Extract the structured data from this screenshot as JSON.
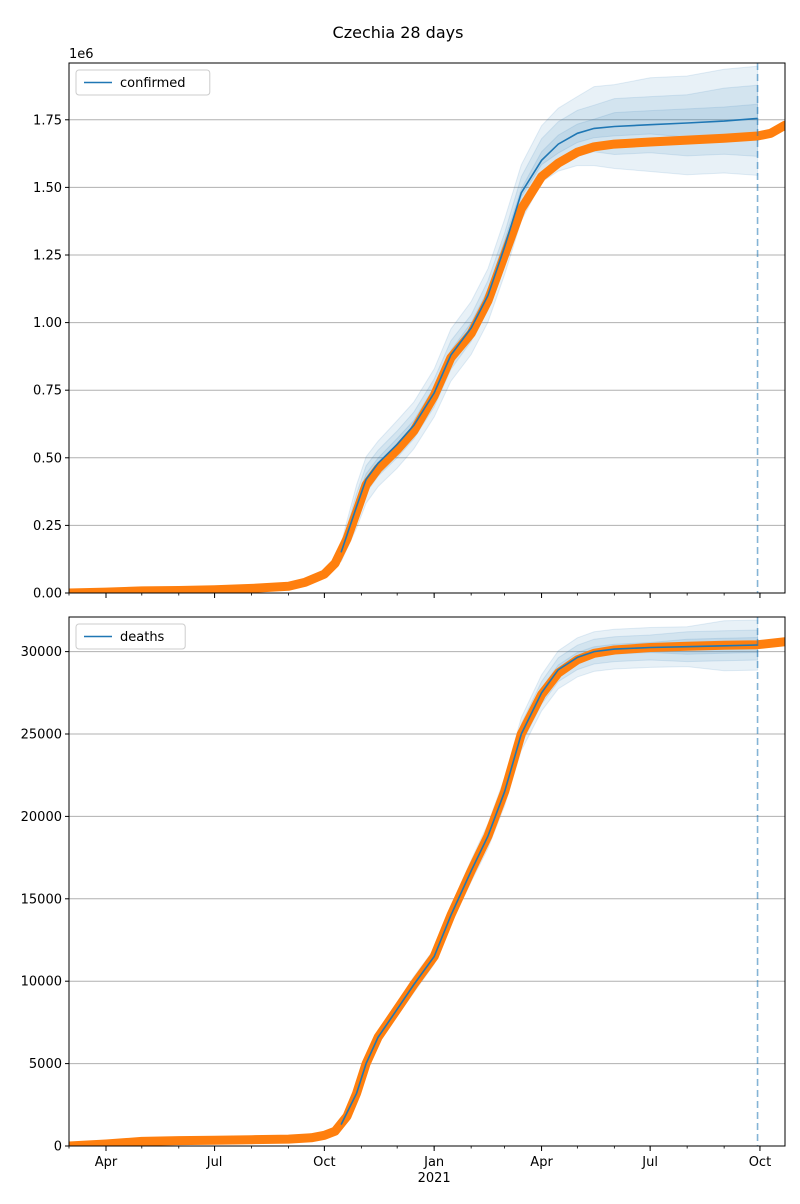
{
  "chart_data": {
    "type": "line",
    "title": "Czechia 28 days",
    "colors": {
      "model": "#1f77b4",
      "observed": "#ff7f0e",
      "grid": "#b0b0b0"
    },
    "x_axis": {
      "tick_labels": [
        "Apr",
        "Jul",
        "Oct",
        "Jan",
        "Apr",
        "Jul",
        "Oct"
      ],
      "tick_dates": [
        "2020-04-01",
        "2020-07-01",
        "2020-10-01",
        "2021-01-01",
        "2021-04-01",
        "2021-07-01",
        "2021-10-01"
      ],
      "year_label": "2021",
      "range": [
        "2020-03-01",
        "2021-10-22"
      ],
      "forecast_start": "2021-09-29"
    },
    "panels": [
      {
        "legend": "confirmed",
        "legend_position": "upper left",
        "offset_label": "1e6",
        "ylim": [
          0,
          1960000
        ],
        "y_ticks": [
          0,
          250000,
          500000,
          750000,
          1000000,
          1250000,
          1500000,
          1750000
        ],
        "y_tick_labels": [
          "0.00",
          "0.25",
          "0.50",
          "0.75",
          "1.00",
          "1.25",
          "1.50",
          "1.75"
        ],
        "grid": true,
        "observed": [
          [
            "2020-03-01",
            0
          ],
          [
            "2020-04-01",
            3300
          ],
          [
            "2020-05-01",
            7700
          ],
          [
            "2020-06-01",
            9300
          ],
          [
            "2020-07-01",
            12000
          ],
          [
            "2020-08-01",
            17000
          ],
          [
            "2020-09-01",
            25000
          ],
          [
            "2020-09-15",
            40000
          ],
          [
            "2020-10-01",
            70000
          ],
          [
            "2020-10-10",
            110000
          ],
          [
            "2020-10-20",
            200000
          ],
          [
            "2020-10-28",
            300000
          ],
          [
            "2020-11-05",
            400000
          ],
          [
            "2020-11-15",
            460000
          ],
          [
            "2020-12-01",
            530000
          ],
          [
            "2020-12-15",
            600000
          ],
          [
            "2021-01-01",
            730000
          ],
          [
            "2021-01-15",
            870000
          ],
          [
            "2021-02-01",
            960000
          ],
          [
            "2021-02-15",
            1080000
          ],
          [
            "2021-03-01",
            1250000
          ],
          [
            "2021-03-15",
            1420000
          ],
          [
            "2021-04-01",
            1540000
          ],
          [
            "2021-04-15",
            1590000
          ],
          [
            "2021-05-01",
            1630000
          ],
          [
            "2021-05-15",
            1650000
          ],
          [
            "2021-06-01",
            1660000
          ],
          [
            "2021-07-01",
            1668000
          ],
          [
            "2021-08-01",
            1675000
          ],
          [
            "2021-09-01",
            1682000
          ],
          [
            "2021-09-29",
            1690000
          ],
          [
            "2021-10-10",
            1700000
          ],
          [
            "2021-10-22",
            1730000
          ]
        ],
        "model": [
          [
            "2020-10-15",
            150000
          ],
          [
            "2020-10-28",
            320000
          ],
          [
            "2020-11-05",
            420000
          ],
          [
            "2020-11-15",
            480000
          ],
          [
            "2020-12-01",
            550000
          ],
          [
            "2020-12-15",
            620000
          ],
          [
            "2021-01-01",
            740000
          ],
          [
            "2021-01-15",
            880000
          ],
          [
            "2021-02-01",
            980000
          ],
          [
            "2021-02-15",
            1100000
          ],
          [
            "2021-03-01",
            1280000
          ],
          [
            "2021-03-15",
            1480000
          ],
          [
            "2021-04-01",
            1600000
          ],
          [
            "2021-04-15",
            1660000
          ],
          [
            "2021-05-01",
            1700000
          ],
          [
            "2021-05-15",
            1718000
          ],
          [
            "2021-06-01",
            1725000
          ],
          [
            "2021-07-01",
            1732000
          ],
          [
            "2021-08-01",
            1738000
          ],
          [
            "2021-09-01",
            1745000
          ],
          [
            "2021-09-29",
            1755000
          ]
        ],
        "bands": [
          {
            "lower": [
              0.77,
              0.75,
              0.79,
              0.82,
              0.84,
              0.86,
              0.88,
              0.89,
              0.9,
              0.91,
              0.92,
              0.93,
              0.95,
              0.94,
              0.93,
              0.92,
              0.91,
              0.9,
              0.89,
              0.89,
              0.88
            ],
            "upper": [
              1.23,
              1.25,
              1.2,
              1.17,
              1.16,
              1.14,
              1.12,
              1.11,
              1.1,
              1.09,
              1.08,
              1.07,
              1.08,
              1.08,
              1.08,
              1.09,
              1.09,
              1.1,
              1.1,
              1.11,
              1.11
            ]
          },
          {
            "lower": [
              0.86,
              0.85,
              0.88,
              0.9,
              0.91,
              0.92,
              0.93,
              0.94,
              0.95,
              0.95,
              0.96,
              0.96,
              0.97,
              0.96,
              0.95,
              0.95,
              0.94,
              0.94,
              0.93,
              0.93,
              0.92
            ],
            "upper": [
              1.14,
              1.15,
              1.12,
              1.1,
              1.09,
              1.08,
              1.07,
              1.06,
              1.05,
              1.05,
              1.04,
              1.04,
              1.05,
              1.05,
              1.05,
              1.05,
              1.06,
              1.06,
              1.06,
              1.07,
              1.07
            ]
          },
          {
            "lower": [
              0.94,
              0.93,
              0.95,
              0.96,
              0.96,
              0.97,
              0.97,
              0.98,
              0.98,
              0.98,
              0.98,
              0.99,
              0.99,
              0.98,
              0.98,
              0.98,
              0.98,
              0.98,
              0.97,
              0.97,
              0.97
            ],
            "upper": [
              1.06,
              1.07,
              1.05,
              1.04,
              1.04,
              1.03,
              1.03,
              1.02,
              1.02,
              1.02,
              1.02,
              1.01,
              1.02,
              1.02,
              1.02,
              1.02,
              1.03,
              1.03,
              1.03,
              1.03,
              1.03
            ]
          }
        ]
      },
      {
        "legend": "deaths",
        "legend_position": "upper left",
        "offset_label": "",
        "ylim": [
          0,
          32100
        ],
        "y_ticks": [
          0,
          5000,
          10000,
          15000,
          20000,
          25000,
          30000
        ],
        "y_tick_labels": [
          "0",
          "5000",
          "10000",
          "15000",
          "20000",
          "25000",
          "30000"
        ],
        "grid": true,
        "observed": [
          [
            "2020-03-01",
            0
          ],
          [
            "2020-04-01",
            120
          ],
          [
            "2020-05-01",
            280
          ],
          [
            "2020-06-01",
            330
          ],
          [
            "2020-07-01",
            350
          ],
          [
            "2020-08-01",
            380
          ],
          [
            "2020-09-01",
            420
          ],
          [
            "2020-09-20",
            500
          ],
          [
            "2020-10-01",
            650
          ],
          [
            "2020-10-10",
            900
          ],
          [
            "2020-10-20",
            1800
          ],
          [
            "2020-10-28",
            3200
          ],
          [
            "2020-11-05",
            5000
          ],
          [
            "2020-11-15",
            6600
          ],
          [
            "2020-12-01",
            8300
          ],
          [
            "2020-12-15",
            9800
          ],
          [
            "2021-01-01",
            11500
          ],
          [
            "2021-01-15",
            14000
          ],
          [
            "2021-02-01",
            16700
          ],
          [
            "2021-02-15",
            18800
          ],
          [
            "2021-03-01",
            21500
          ],
          [
            "2021-03-15",
            25000
          ],
          [
            "2021-04-01",
            27400
          ],
          [
            "2021-04-15",
            28700
          ],
          [
            "2021-05-01",
            29500
          ],
          [
            "2021-05-15",
            29900
          ],
          [
            "2021-06-01",
            30100
          ],
          [
            "2021-07-01",
            30250
          ],
          [
            "2021-08-01",
            30330
          ],
          [
            "2021-09-01",
            30380
          ],
          [
            "2021-09-29",
            30420
          ],
          [
            "2021-10-22",
            30600
          ]
        ],
        "model": [
          [
            "2020-10-15",
            1300
          ],
          [
            "2020-10-28",
            3200
          ],
          [
            "2020-11-05",
            5000
          ],
          [
            "2020-11-15",
            6600
          ],
          [
            "2020-12-01",
            8300
          ],
          [
            "2020-12-15",
            9800
          ],
          [
            "2021-01-01",
            11500
          ],
          [
            "2021-01-15",
            14000
          ],
          [
            "2021-02-01",
            16700
          ],
          [
            "2021-02-15",
            18800
          ],
          [
            "2021-03-01",
            21500
          ],
          [
            "2021-03-15",
            25000
          ],
          [
            "2021-04-01",
            27500
          ],
          [
            "2021-04-15",
            28900
          ],
          [
            "2021-05-01",
            29650
          ],
          [
            "2021-05-15",
            30000
          ],
          [
            "2021-06-01",
            30150
          ],
          [
            "2021-07-01",
            30250
          ],
          [
            "2021-08-01",
            30300
          ],
          [
            "2021-09-01",
            30350
          ],
          [
            "2021-09-29",
            30400
          ]
        ],
        "bands": [
          {
            "lower": [
              0.92,
              0.93,
              0.94,
              0.95,
              0.95,
              0.95,
              0.96,
              0.96,
              0.96,
              0.96,
              0.96,
              0.96,
              0.96,
              0.96,
              0.96,
              0.96,
              0.96,
              0.96,
              0.96,
              0.95,
              0.95
            ],
            "upper": [
              1.08,
              1.07,
              1.06,
              1.05,
              1.05,
              1.05,
              1.04,
              1.04,
              1.04,
              1.04,
              1.04,
              1.04,
              1.04,
              1.04,
              1.04,
              1.04,
              1.04,
              1.04,
              1.04,
              1.05,
              1.05
            ]
          },
          {
            "lower": [
              0.95,
              0.96,
              0.96,
              0.97,
              0.97,
              0.97,
              0.975,
              0.975,
              0.975,
              0.975,
              0.975,
              0.975,
              0.975,
              0.975,
              0.975,
              0.975,
              0.975,
              0.975,
              0.97,
              0.97,
              0.97
            ],
            "upper": [
              1.05,
              1.04,
              1.04,
              1.03,
              1.03,
              1.03,
              1.025,
              1.025,
              1.025,
              1.025,
              1.025,
              1.025,
              1.025,
              1.025,
              1.025,
              1.025,
              1.025,
              1.025,
              1.03,
              1.03,
              1.03
            ]
          },
          {
            "lower": [
              0.98,
              0.98,
              0.985,
              0.985,
              0.985,
              0.985,
              0.99,
              0.99,
              0.99,
              0.99,
              0.99,
              0.99,
              0.99,
              0.99,
              0.99,
              0.99,
              0.99,
              0.99,
              0.985,
              0.985,
              0.985
            ],
            "upper": [
              1.02,
              1.02,
              1.015,
              1.015,
              1.015,
              1.015,
              1.01,
              1.01,
              1.01,
              1.01,
              1.01,
              1.01,
              1.01,
              1.01,
              1.01,
              1.01,
              1.01,
              1.01,
              1.015,
              1.015,
              1.015
            ]
          }
        ]
      }
    ]
  }
}
